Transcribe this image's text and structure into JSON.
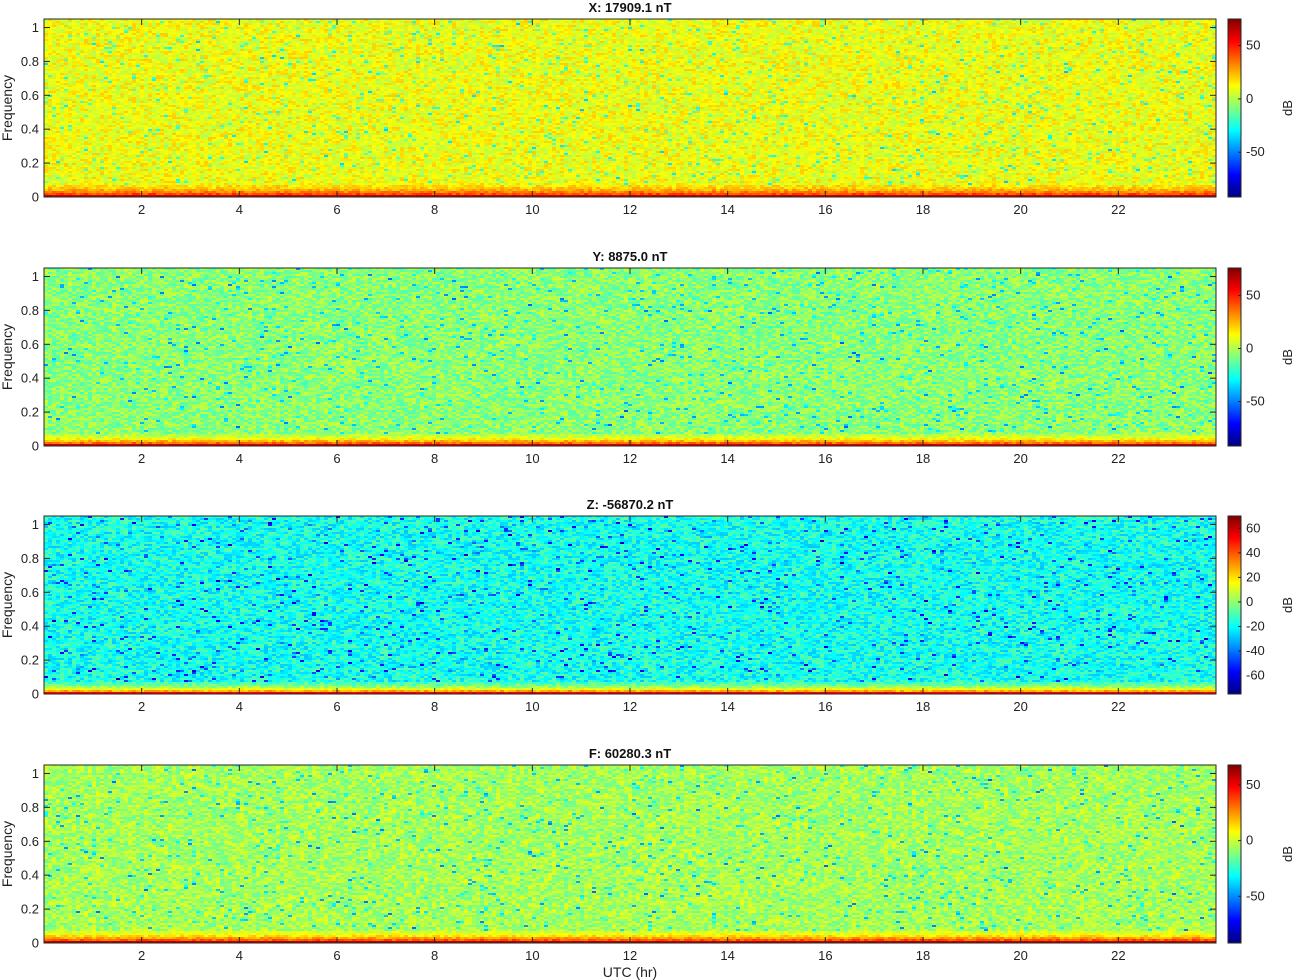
{
  "chart_data": [
    {
      "type": "heatmap",
      "title": "X: 17909.1 nT",
      "ylabel": "Frequency",
      "xlabel": "",
      "xlim": [
        0,
        24
      ],
      "ylim": [
        0,
        1.05
      ],
      "xticks": [
        2,
        4,
        6,
        8,
        10,
        12,
        14,
        16,
        18,
        20,
        22
      ],
      "yticks": [
        0,
        0.2,
        0.4,
        0.6,
        0.8,
        1
      ],
      "colorbar": {
        "label": "dB",
        "range": [
          -92,
          75
        ],
        "ticks": [
          50,
          0,
          -50
        ]
      },
      "colormap": "jet",
      "description_levels": {
        "low_freq_band_db": 60,
        "floor_db": 10
      }
    },
    {
      "type": "heatmap",
      "title": "Y: 8875.0 nT",
      "ylabel": "Frequency",
      "xlabel": "",
      "xlim": [
        0,
        24
      ],
      "ylim": [
        0,
        1.05
      ],
      "xticks": [
        2,
        4,
        6,
        8,
        10,
        12,
        14,
        16,
        18,
        20,
        22
      ],
      "yticks": [
        0,
        0.2,
        0.4,
        0.6,
        0.8,
        1
      ],
      "colorbar": {
        "label": "dB",
        "range": [
          -92,
          76
        ],
        "ticks": [
          50,
          0,
          -50
        ]
      },
      "colormap": "jet",
      "description_levels": {
        "low_freq_band_db": 60,
        "floor_db": -6
      }
    },
    {
      "type": "heatmap",
      "title": "Z: -56870.2 nT",
      "ylabel": "Frequency",
      "xlabel": "",
      "xlim": [
        0,
        24
      ],
      "ylim": [
        0,
        1.05
      ],
      "xticks": [
        2,
        4,
        6,
        8,
        10,
        12,
        14,
        16,
        18,
        20,
        22
      ],
      "yticks": [
        0,
        0.2,
        0.4,
        0.6,
        0.8,
        1
      ],
      "colorbar": {
        "label": "dB",
        "range": [
          -75,
          70
        ],
        "ticks": [
          60,
          40,
          20,
          0,
          -20,
          -40,
          -60
        ]
      },
      "colormap": "jet",
      "description_levels": {
        "low_freq_band_db": 50,
        "floor_db": -18
      }
    },
    {
      "type": "heatmap",
      "title": "F: 60280.3 nT",
      "ylabel": "Frequency",
      "xlabel": "UTC (hr)",
      "xlim": [
        0,
        24
      ],
      "ylim": [
        0,
        1.05
      ],
      "xticks": [
        2,
        4,
        6,
        8,
        10,
        12,
        14,
        16,
        18,
        20,
        22
      ],
      "yticks": [
        0,
        0.2,
        0.4,
        0.6,
        0.8,
        1
      ],
      "colorbar": {
        "label": "dB",
        "range": [
          -92,
          68
        ],
        "ticks": [
          50,
          0,
          -50
        ]
      },
      "colormap": "jet",
      "description_levels": {
        "low_freq_band_db": 55,
        "floor_db": -6
      }
    }
  ]
}
